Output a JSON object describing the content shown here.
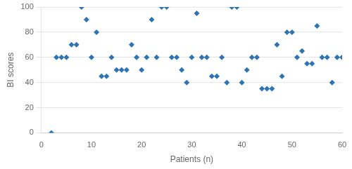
{
  "chart_data": {
    "type": "scatter",
    "xlabel": "Patients (n)",
    "ylabel": "BI scores",
    "x": [
      2,
      3,
      4,
      5,
      6,
      7,
      8,
      9,
      10,
      11,
      12,
      13,
      14,
      15,
      16,
      17,
      18,
      19,
      20,
      21,
      22,
      23,
      24,
      25,
      26,
      27,
      28,
      29,
      30,
      31,
      32,
      33,
      34,
      35,
      36,
      37,
      38,
      39,
      40,
      41,
      42,
      43,
      44,
      45,
      46,
      47,
      48,
      49,
      50,
      51,
      52,
      53,
      54,
      55,
      56,
      57,
      58,
      59,
      60
    ],
    "values": [
      0,
      60,
      60,
      60,
      70,
      70,
      100,
      90,
      60,
      80,
      45,
      45,
      60,
      50,
      50,
      50,
      70,
      60,
      50,
      60,
      90,
      60,
      100,
      100,
      60,
      60,
      50,
      40,
      60,
      95,
      60,
      60,
      45,
      45,
      60,
      40,
      100,
      100,
      40,
      50,
      60,
      60,
      35,
      35,
      35,
      70,
      45,
      80,
      80,
      60,
      65,
      55,
      55,
      85,
      60,
      60,
      40,
      60,
      60
    ],
    "color": "#2E74B5",
    "marker": "diamond",
    "xlim": [
      0,
      60
    ],
    "ylim": [
      0,
      100
    ],
    "xticks": [
      0,
      10,
      20,
      30,
      40,
      50,
      60
    ],
    "yticks": [
      0,
      20,
      40,
      60,
      80,
      100
    ],
    "grid": "y"
  }
}
